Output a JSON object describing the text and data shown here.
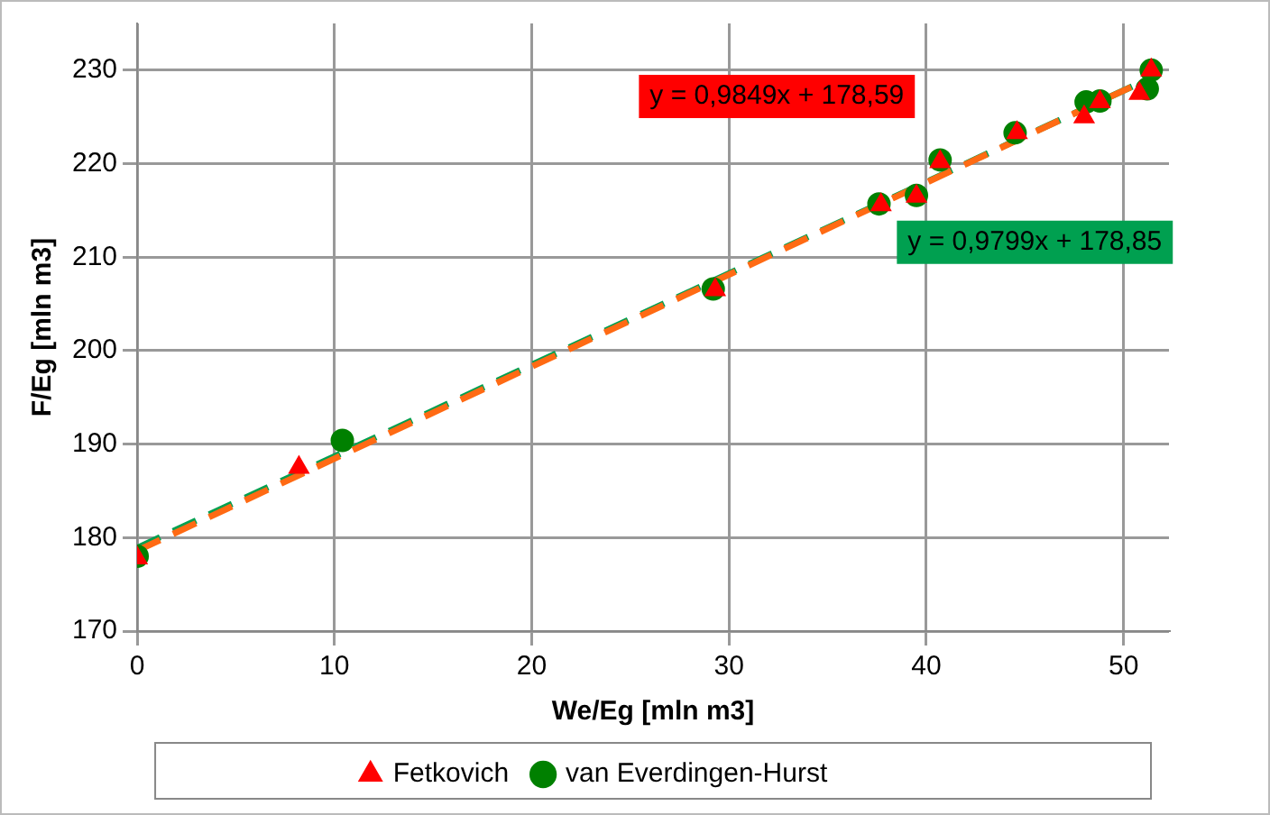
{
  "chart_data": {
    "type": "scatter",
    "xlabel": "We/Eg [mln m3]",
    "ylabel": "F/Eg [mln m3]",
    "xlim": [
      0,
      52.3
    ],
    "xticks": [
      0,
      10,
      20,
      30,
      40,
      50
    ],
    "ylim": [
      170,
      235
    ],
    "yticks": [
      170,
      180,
      190,
      200,
      210,
      220,
      230
    ],
    "grid": true,
    "legend": "bottom",
    "series": [
      {
        "name": "van Everdingen-Hurst",
        "color": "#008000",
        "marker": "circle",
        "x": [
          0,
          10.4,
          29.2,
          37.6,
          39.5,
          40.7,
          44.5,
          48.0,
          48.1,
          48.8,
          51.2,
          51.4
        ],
        "values": [
          178,
          190.4,
          206.6,
          215.7,
          216.6,
          220.4,
          223.3,
          null,
          226.6,
          226.7,
          228,
          230
        ]
      },
      {
        "name": "Fetkovich",
        "color": "#ff0000",
        "marker": "triangle",
        "x": [
          0,
          8.2,
          29.3,
          37.7,
          39.5,
          40.7,
          44.6,
          48.0,
          48.8,
          50.8,
          51.4
        ],
        "values": [
          177.8,
          187.5,
          206.5,
          215.6,
          216.5,
          220.2,
          223.3,
          225,
          226.6,
          227.5,
          230
        ]
      },
      {
        "type": "line",
        "color": "#00a050",
        "line_style": "dashed",
        "marker": "none",
        "x": [
          0,
          51.4
        ],
        "values": [
          178.9,
          229.2
        ]
      },
      {
        "type": "line",
        "color": "#ff6a13",
        "line_style": "dashed",
        "marker": "none",
        "x": [
          0,
          51.4
        ],
        "values": [
          178.6,
          229.2
        ]
      }
    ],
    "annotations": [
      "y = 0,9849x + 178,59",
      "y = 0,9799x + 178,85"
    ]
  }
}
